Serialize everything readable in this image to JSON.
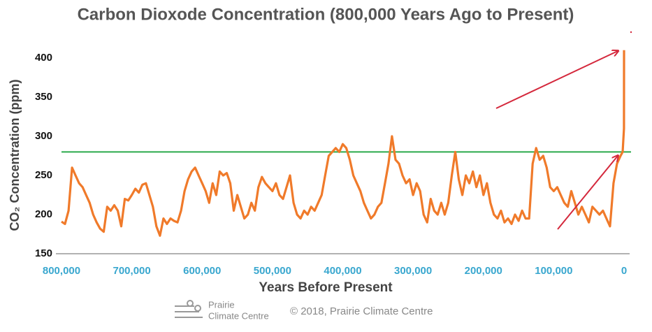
{
  "chart_data": {
    "type": "line",
    "title": "Carbon Dioxode Concentration (800,000 Years Ago to Present)",
    "xlabel": "Years Before Present",
    "ylabel": "CO₂ Concentration (ppm)",
    "xlim": [
      800000,
      0
    ],
    "ylim": [
      150,
      410
    ],
    "xticks": [
      {
        "value": 800000,
        "label": "800,000"
      },
      {
        "value": 700000,
        "label": "700,000"
      },
      {
        "value": 600000,
        "label": "600,000"
      },
      {
        "value": 500000,
        "label": "500,000"
      },
      {
        "value": 400000,
        "label": "400,000"
      },
      {
        "value": 300000,
        "label": "300,000"
      },
      {
        "value": 200000,
        "label": "200,000"
      },
      {
        "value": 100000,
        "label": "100,000"
      },
      0
    ],
    "yticks": [
      150,
      200,
      250,
      300,
      350,
      400
    ],
    "reference_line": {
      "value": 280,
      "color": "#2baa4b"
    },
    "series": [
      {
        "color": "#f07a2a",
        "x": [
          800000,
          795000,
          790000,
          785000,
          780000,
          775000,
          770000,
          765000,
          760000,
          755000,
          750000,
          745000,
          740000,
          735000,
          730000,
          725000,
          720000,
          715000,
          710000,
          705000,
          700000,
          695000,
          690000,
          685000,
          680000,
          675000,
          670000,
          665000,
          660000,
          655000,
          650000,
          645000,
          640000,
          635000,
          630000,
          625000,
          620000,
          615000,
          610000,
          605000,
          600000,
          595000,
          590000,
          585000,
          580000,
          575000,
          570000,
          565000,
          560000,
          555000,
          550000,
          545000,
          540000,
          535000,
          530000,
          525000,
          520000,
          515000,
          510000,
          505000,
          500000,
          495000,
          490000,
          485000,
          480000,
          475000,
          470000,
          465000,
          460000,
          455000,
          450000,
          445000,
          440000,
          435000,
          430000,
          425000,
          420000,
          415000,
          410000,
          405000,
          400000,
          395000,
          390000,
          385000,
          380000,
          375000,
          370000,
          365000,
          360000,
          355000,
          350000,
          345000,
          340000,
          335000,
          330000,
          325000,
          320000,
          315000,
          310000,
          305000,
          300000,
          295000,
          290000,
          285000,
          280000,
          275000,
          270000,
          265000,
          260000,
          255000,
          250000,
          245000,
          240000,
          235000,
          230000,
          225000,
          220000,
          215000,
          210000,
          205000,
          200000,
          195000,
          190000,
          185000,
          180000,
          175000,
          170000,
          165000,
          160000,
          155000,
          150000,
          145000,
          140000,
          135000,
          130000,
          125000,
          120000,
          115000,
          110000,
          105000,
          100000,
          95000,
          90000,
          85000,
          80000,
          75000,
          70000,
          65000,
          60000,
          55000,
          50000,
          45000,
          40000,
          35000,
          30000,
          25000,
          20000,
          15000,
          10000,
          5000,
          2000,
          100,
          0
        ],
        "values": [
          191,
          188,
          205,
          260,
          250,
          240,
          235,
          225,
          215,
          200,
          190,
          182,
          178,
          210,
          205,
          212,
          205,
          185,
          220,
          218,
          225,
          233,
          228,
          238,
          240,
          225,
          210,
          185,
          173,
          195,
          188,
          195,
          192,
          190,
          205,
          230,
          245,
          255,
          260,
          250,
          240,
          230,
          215,
          240,
          225,
          255,
          250,
          253,
          240,
          205,
          225,
          210,
          195,
          200,
          215,
          205,
          235,
          248,
          240,
          235,
          230,
          240,
          225,
          220,
          235,
          250,
          215,
          200,
          195,
          205,
          200,
          210,
          205,
          215,
          225,
          250,
          275,
          280,
          285,
          280,
          290,
          285,
          270,
          250,
          240,
          230,
          215,
          205,
          195,
          200,
          210,
          215,
          240,
          265,
          300,
          270,
          265,
          250,
          240,
          245,
          225,
          240,
          230,
          200,
          190,
          220,
          205,
          200,
          215,
          200,
          215,
          250,
          280,
          245,
          225,
          250,
          240,
          255,
          235,
          250,
          225,
          240,
          215,
          200,
          195,
          205,
          190,
          195,
          188,
          200,
          192,
          205,
          195,
          195,
          265,
          285,
          270,
          275,
          260,
          235,
          230,
          235,
          225,
          215,
          210,
          230,
          215,
          200,
          210,
          200,
          190,
          210,
          205,
          200,
          205,
          195,
          185,
          240,
          265,
          275,
          280,
          310,
          410
        ]
      }
    ],
    "footer": {
      "logo_line1": "Prairie",
      "logo_line2": "Climate Centre",
      "credit": "© 2018, Prairie Climate Centre"
    }
  }
}
